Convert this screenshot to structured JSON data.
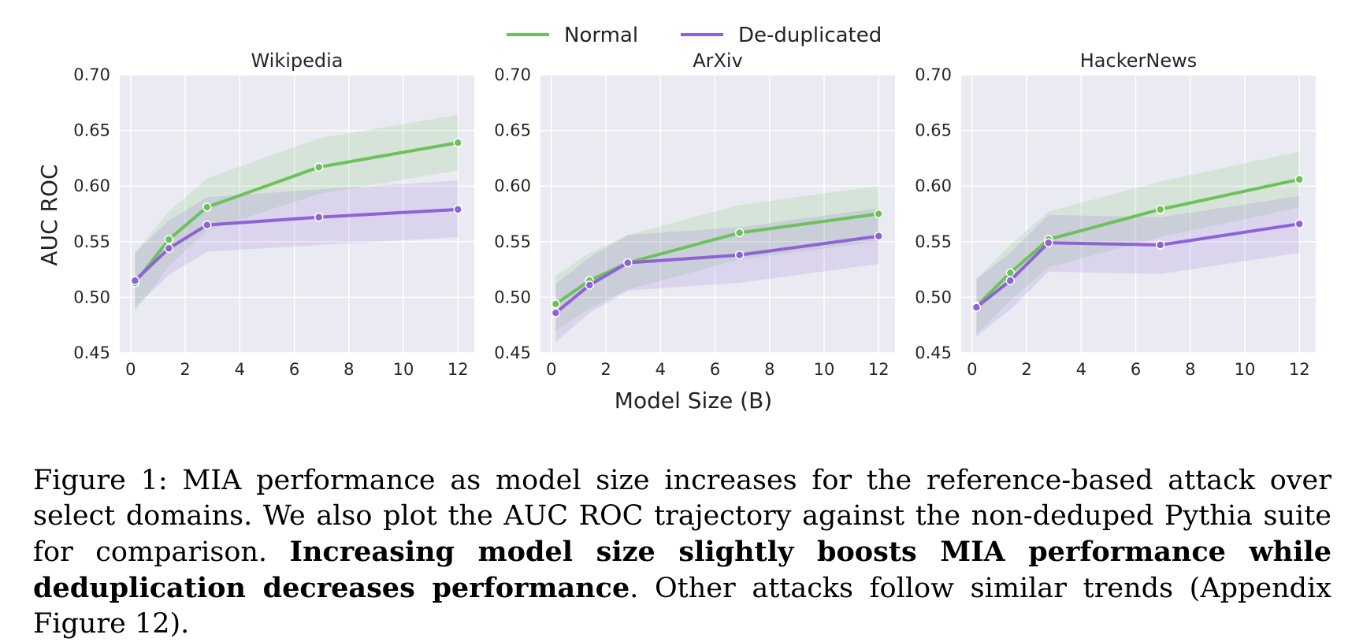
{
  "legend": {
    "items": [
      {
        "label": "Normal",
        "color": "#6cc25a"
      },
      {
        "label": "De-duplicated",
        "color": "#8f62d6"
      }
    ]
  },
  "shared_ylabel": "AUC ROC",
  "shared_xlabel": "Model Size (B)",
  "chart_data": [
    {
      "type": "line",
      "title": "Wikipedia",
      "xlabel": "Model Size (B)",
      "ylabel": "AUC ROC",
      "xlim": [
        -0.4,
        12.6
      ],
      "ylim": [
        0.45,
        0.7
      ],
      "xticks": [
        "0",
        "2",
        "4",
        "6",
        "8",
        "10",
        "12"
      ],
      "yticks": [
        "0.45",
        "0.50",
        "0.55",
        "0.60",
        "0.65",
        "0.70"
      ],
      "grid": true,
      "series": [
        {
          "name": "Normal",
          "color": "#6cc25a",
          "x": [
            0.16,
            1.4,
            2.8,
            6.9,
            12
          ],
          "y": [
            0.513,
            0.552,
            0.581,
            0.617,
            0.639
          ],
          "lower": [
            0.487,
            0.528,
            0.56,
            0.593,
            0.614
          ],
          "upper": [
            0.54,
            0.577,
            0.607,
            0.643,
            0.664
          ]
        },
        {
          "name": "De-duplicated",
          "color": "#8f62d6",
          "x": [
            0.16,
            1.4,
            2.8,
            6.9,
            12
          ],
          "y": [
            0.515,
            0.544,
            0.565,
            0.572,
            0.579
          ],
          "lower": [
            0.491,
            0.52,
            0.541,
            0.547,
            0.554
          ],
          "upper": [
            0.54,
            0.569,
            0.59,
            0.597,
            0.605
          ]
        }
      ]
    },
    {
      "type": "line",
      "title": "ArXiv",
      "xlabel": "Model Size (B)",
      "ylabel": "AUC ROC",
      "xlim": [
        -0.4,
        12.6
      ],
      "ylim": [
        0.45,
        0.7
      ],
      "xticks": [
        "0",
        "2",
        "4",
        "6",
        "8",
        "10",
        "12"
      ],
      "yticks": [
        "0.45",
        "0.50",
        "0.55",
        "0.60",
        "0.65",
        "0.70"
      ],
      "grid": true,
      "series": [
        {
          "name": "Normal",
          "color": "#6cc25a",
          "x": [
            0.16,
            1.4,
            2.8,
            6.9,
            12
          ],
          "y": [
            0.494,
            0.515,
            0.531,
            0.558,
            0.575
          ],
          "lower": [
            0.47,
            0.49,
            0.507,
            0.534,
            0.55
          ],
          "upper": [
            0.519,
            0.54,
            0.556,
            0.583,
            0.6
          ]
        },
        {
          "name": "De-duplicated",
          "color": "#8f62d6",
          "x": [
            0.16,
            1.4,
            2.8,
            6.9,
            12
          ],
          "y": [
            0.486,
            0.511,
            0.531,
            0.538,
            0.555
          ],
          "lower": [
            0.46,
            0.486,
            0.506,
            0.513,
            0.53
          ],
          "upper": [
            0.512,
            0.536,
            0.556,
            0.563,
            0.58
          ]
        }
      ]
    },
    {
      "type": "line",
      "title": "HackerNews",
      "xlabel": "Model Size (B)",
      "ylabel": "AUC ROC",
      "xlim": [
        -0.4,
        12.6
      ],
      "ylim": [
        0.45,
        0.7
      ],
      "xticks": [
        "0",
        "2",
        "4",
        "6",
        "8",
        "10",
        "12"
      ],
      "yticks": [
        "0.45",
        "0.50",
        "0.55",
        "0.60",
        "0.65",
        "0.70"
      ],
      "grid": true,
      "series": [
        {
          "name": "Normal",
          "color": "#6cc25a",
          "x": [
            0.16,
            1.4,
            2.8,
            6.9,
            12
          ],
          "y": [
            0.492,
            0.522,
            0.552,
            0.579,
            0.606
          ],
          "lower": [
            0.467,
            0.497,
            0.527,
            0.554,
            0.581
          ],
          "upper": [
            0.517,
            0.547,
            0.577,
            0.604,
            0.631
          ]
        },
        {
          "name": "De-duplicated",
          "color": "#8f62d6",
          "x": [
            0.16,
            1.4,
            2.8,
            6.9,
            12
          ],
          "y": [
            0.491,
            0.515,
            0.549,
            0.547,
            0.566
          ],
          "lower": [
            0.465,
            0.489,
            0.523,
            0.521,
            0.54
          ],
          "upper": [
            0.516,
            0.54,
            0.574,
            0.572,
            0.591
          ]
        }
      ]
    }
  ],
  "caption": {
    "part1": "Figure 1: MIA performance as model size increases for the reference-based attack over select domains. We also plot the AUC ROC trajectory against the non-deduped Pythia suite for comparison. ",
    "bold": "Increasing model size slightly boosts MIA performance while deduplication decreases performance",
    "part2": ". Other attacks follow similar trends (Appendix Figure 12)."
  }
}
